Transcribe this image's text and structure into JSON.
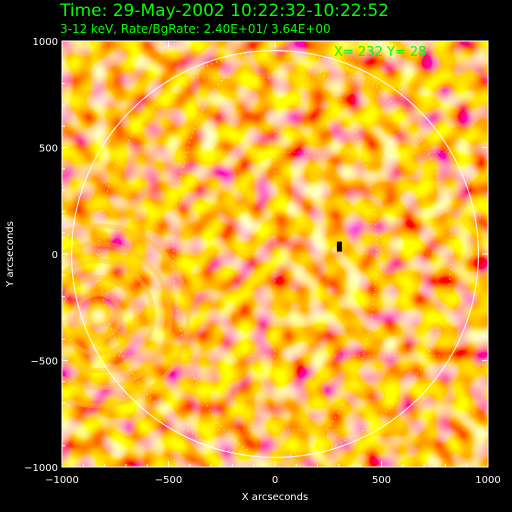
{
  "header": {
    "time_line": "Time: 29-May-2002 10:22:32-10:22:52",
    "info_line": "3-12 keV, Rate/BgRate:  2.40E+01/  3.64E+00",
    "coord_readout": "X=  232 Y=   28"
  },
  "colors": {
    "background": "#000000",
    "header_text": "#00ff00",
    "axis_text": "#ffffff",
    "circle": "#ffffff",
    "image_low": "#ff4a00",
    "image_mid": "#ffa000",
    "image_high": "#ffee90",
    "source_dark": "#000000"
  },
  "chart_data": {
    "type": "heatmap",
    "title": "",
    "xlabel": "X arcseconds",
    "ylabel": "Y arcseconds",
    "xlim": [
      -1000,
      1000
    ],
    "ylim": [
      -1000,
      1000
    ],
    "x_ticks": [
      -1000,
      -500,
      0,
      500,
      1000
    ],
    "y_ticks": [
      -1000,
      -500,
      0,
      500,
      1000
    ],
    "x_tick_labels": [
      "−1000",
      "−500",
      "0",
      "500",
      "1000"
    ],
    "y_tick_labels": [
      "−1000",
      "−500",
      "0",
      "500",
      "1000"
    ],
    "solar_limb": {
      "center": [
        0,
        0
      ],
      "radius_arcsec": 955
    },
    "grid": true,
    "sources": [
      {
        "name": "source-bright",
        "x": -830,
        "y": -290,
        "radius": 40
      },
      {
        "name": "source-dark",
        "x": 300,
        "y": 30,
        "radius": 14
      }
    ]
  }
}
